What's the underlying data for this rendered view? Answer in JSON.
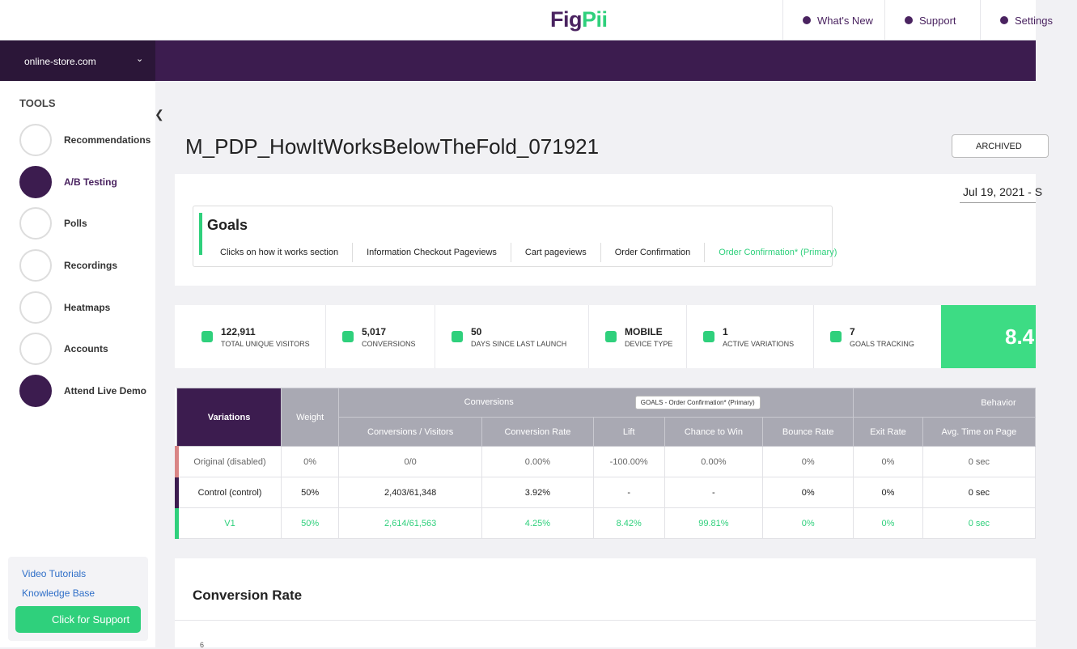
{
  "header": {
    "logo": "FigPii",
    "nav": [
      "What's New",
      "Support",
      "Settings"
    ]
  },
  "sidebar": {
    "site": "online-store.com",
    "section": "TOOLS",
    "tools": [
      "Recommendations",
      "A/B Testing",
      "Polls",
      "Recordings",
      "Heatmaps",
      "Accounts",
      "Attend Live Demo"
    ],
    "links": [
      "Video Tutorials",
      "Knowledge Base"
    ],
    "support_button": "Click for Support"
  },
  "experiment": {
    "title": "M_PDP_HowItWorksBelowTheFold_071921",
    "status": "ARCHIVED",
    "date_range": "Jul 19, 2021 - S"
  },
  "goals": {
    "title": "Goals",
    "tabs": [
      "Clicks on how it works section",
      "Information Checkout Pageviews",
      "Cart pageviews",
      "Order Confirmation",
      "Order Confirmation* (Primary)"
    ]
  },
  "stats": [
    {
      "value": "122,911",
      "label": "TOTAL UNIQUE VISITORS"
    },
    {
      "value": "5,017",
      "label": "CONVERSIONS"
    },
    {
      "value": "50",
      "label": "DAYS SINCE LAST LAUNCH"
    },
    {
      "value": "MOBILE",
      "label": "DEVICE TYPE"
    },
    {
      "value": "1",
      "label": "ACTIVE VARIATIONS"
    },
    {
      "value": "7",
      "label": "GOALS TRACKING"
    }
  ],
  "highlight": "8.4",
  "table": {
    "group_headers": [
      "Variations",
      "Weight",
      "Conversions",
      "Behavior"
    ],
    "goal_selector": "GOALS - Order Confirmation* (Primary)",
    "columns": [
      "Conversions / Visitors",
      "Conversion Rate",
      "Lift",
      "Chance to Win",
      "Bounce Rate",
      "Exit Rate",
      "Avg. Time on Page"
    ],
    "rows": [
      [
        "Original (disabled)",
        "0%",
        "0/0",
        "0.00%",
        "-100.00%",
        "0.00%",
        "0%",
        "0%",
        "0 sec"
      ],
      [
        "Control (control)",
        "50%",
        "2,403/61,348",
        "3.92%",
        "-",
        "-",
        "0%",
        "0%",
        "0 sec"
      ],
      [
        "V1",
        "50%",
        "2,614/61,563",
        "4.25%",
        "8.42%",
        "99.81%",
        "0%",
        "0%",
        "0 sec"
      ]
    ]
  },
  "chart": {
    "title": "Conversion Rate",
    "y_tick": "6"
  }
}
